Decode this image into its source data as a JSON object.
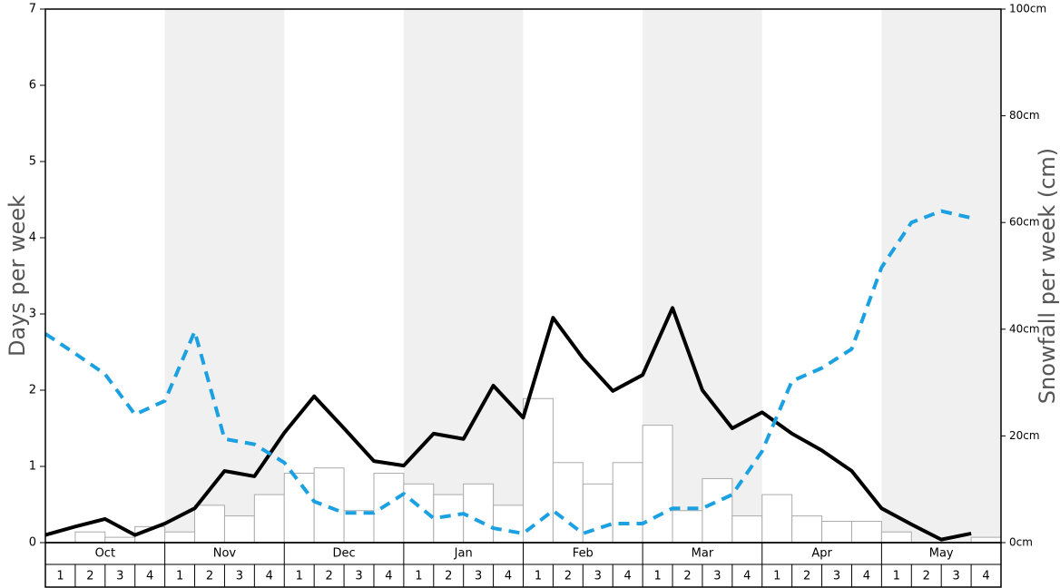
{
  "chart_data": {
    "type": "combo",
    "ylabel": "Days per week",
    "y2label": "Snowfall per week (cm)",
    "months": [
      "Oct",
      "Nov",
      "Dec",
      "Jan",
      "Feb",
      "Mar",
      "Apr",
      "May"
    ],
    "weeks": [
      "1",
      "2",
      "3",
      "4"
    ],
    "shaded_months": [
      1,
      3,
      5,
      7
    ],
    "shade_color": "#f0f0f0",
    "ylim": [
      0,
      7
    ],
    "yticks": [
      0,
      1,
      2,
      3,
      4,
      5,
      6,
      7
    ],
    "y2lim": [
      0,
      100
    ],
    "y2ticks": [
      {
        "value": 0,
        "label": "0cm"
      },
      {
        "value": 20,
        "label": "20cm"
      },
      {
        "value": 40,
        "label": "40cm"
      },
      {
        "value": 60,
        "label": "60cm"
      },
      {
        "value": 80,
        "label": "80cm"
      },
      {
        "value": 100,
        "label": "100cm"
      }
    ],
    "series": [
      {
        "type": "bar",
        "axis": "y2",
        "color": "#ffffff",
        "edge_color": "#aaaaaa",
        "values": [
          0,
          2,
          1,
          3,
          2,
          7,
          5,
          9,
          13,
          14,
          6,
          13,
          11,
          9,
          11,
          7,
          27,
          15,
          11,
          15,
          22,
          6,
          12,
          5,
          9,
          5,
          4,
          4,
          2,
          0,
          0,
          1
        ]
      },
      {
        "type": "line",
        "axis": "y",
        "color": "#000000",
        "dashed": false,
        "values": [
          0.1,
          0.21,
          0.31,
          0.1,
          0.25,
          0.45,
          0.94,
          0.87,
          1.44,
          1.92,
          1.5,
          1.07,
          1.01,
          1.43,
          1.36,
          2.06,
          1.64,
          2.95,
          2.42,
          1.99,
          2.2,
          3.08,
          2.0,
          1.5,
          1.71,
          1.43,
          1.21,
          0.94,
          0.45,
          0.24,
          0.04,
          0.12
        ]
      },
      {
        "type": "line",
        "axis": "y",
        "color": "#1ba1e2",
        "dashed": true,
        "values": [
          2.74,
          2.48,
          2.21,
          1.68,
          1.86,
          2.77,
          1.36,
          1.29,
          1.05,
          0.54,
          0.39,
          0.39,
          0.64,
          0.32,
          0.38,
          0.19,
          0.12,
          0.42,
          0.12,
          0.25,
          0.25,
          0.45,
          0.45,
          0.63,
          1.2,
          2.12,
          2.29,
          2.54,
          3.61,
          4.2,
          4.35,
          4.26
        ]
      }
    ]
  }
}
